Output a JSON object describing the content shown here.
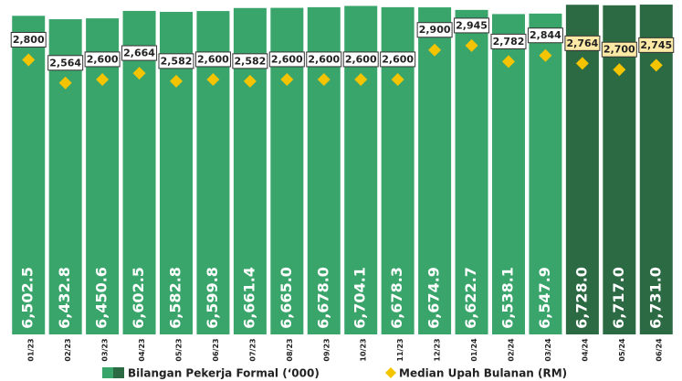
{
  "chart_data": {
    "type": "bar",
    "categories": [
      "01/23",
      "02/23",
      "03/23",
      "04/23",
      "05/23",
      "06/23",
      "07/23",
      "08/23",
      "09/23",
      "10/23",
      "11/23",
      "12/23",
      "01/24",
      "02/24",
      "03/24",
      "04/24",
      "05/24",
      "06/24"
    ],
    "ylim": [
      0,
      6825
    ],
    "y2lim": [
      0,
      3410
    ],
    "series": [
      {
        "name": "Bilangan Pekerja Formal (‘000)",
        "type": "bar",
        "colors": [
          "#3aa56b",
          "#3aa56b",
          "#3aa56b",
          "#3aa56b",
          "#3aa56b",
          "#3aa56b",
          "#3aa56b",
          "#3aa56b",
          "#3aa56b",
          "#3aa56b",
          "#3aa56b",
          "#3aa56b",
          "#3aa56b",
          "#3aa56b",
          "#3aa56b",
          "#2b6a43",
          "#2b6a43",
          "#2b6a43"
        ],
        "values": [
          6502.5,
          6432.8,
          6450.6,
          6602.5,
          6582.8,
          6599.8,
          6661.4,
          6665.0,
          6678.0,
          6704.1,
          6678.3,
          6674.9,
          6622.7,
          6538.1,
          6547.9,
          6728.0,
          6717.0,
          6731.0
        ],
        "value_labels": [
          "6,502.5",
          "6,432.8",
          "6,450.6",
          "6,602.5",
          "6,582.8",
          "6,599.8",
          "6,661.4",
          "6,665.0",
          "6,678.0",
          "6,704.1",
          "6,678.3",
          "6,674.9",
          "6,622.7",
          "6,538.1",
          "6,547.9",
          "6,728.0",
          "6,717.0",
          "6,731.0"
        ]
      },
      {
        "name": "Median Upah Bulanan (RM)",
        "type": "scatter",
        "axis": "y2",
        "color": "#f5c400",
        "values": [
          2800,
          2564,
          2600,
          2664,
          2582,
          2600,
          2582,
          2600,
          2600,
          2600,
          2600,
          2900,
          2945,
          2782,
          2844,
          2764,
          2700,
          2745
        ],
        "value_labels": [
          "2,800",
          "2,564",
          "2,600",
          "2,664",
          "2,582",
          "2,600",
          "2,582",
          "2,600",
          "2,600",
          "2,600",
          "2,600",
          "2,900",
          "2,945",
          "2,782",
          "2,844",
          "2,764",
          "2,700",
          "2,745"
        ],
        "label_fills": [
          "#ffffff",
          "#ffffff",
          "#ffffff",
          "#ffffff",
          "#ffffff",
          "#ffffff",
          "#ffffff",
          "#ffffff",
          "#ffffff",
          "#ffffff",
          "#ffffff",
          "#ffffff",
          "#ffffff",
          "#ffffff",
          "#ffffff",
          "#fde9a6",
          "#fde9a6",
          "#fde9a6"
        ]
      }
    ]
  }
}
